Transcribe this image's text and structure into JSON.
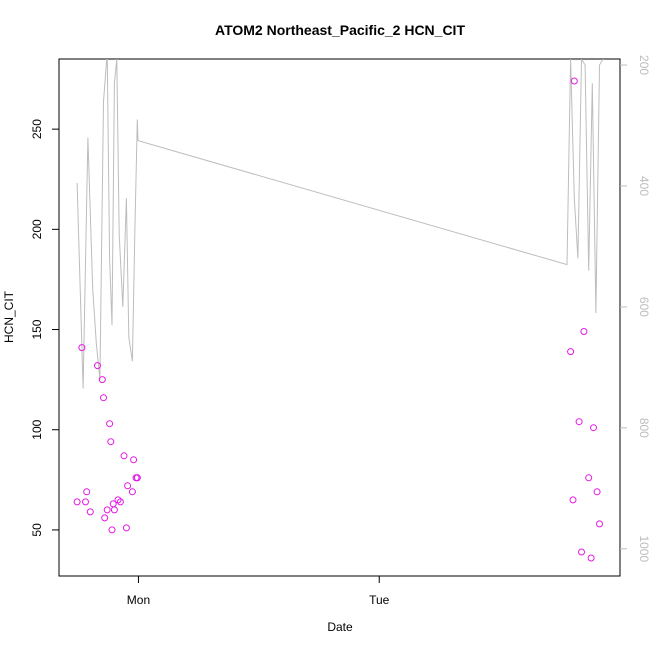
{
  "chart_data": {
    "type": "scatter",
    "title": "ATOM2 Northeast_Pacific_2 HCN_CIT",
    "xlabel": "Date",
    "ylabel": "HCN_CIT",
    "x_ticks": [
      "Mon",
      "Tue"
    ],
    "y_ticks": [
      50,
      100,
      150,
      200,
      250
    ],
    "y_right_ticks": [
      200,
      400,
      600,
      800,
      1000
    ],
    "xlim_hours": [
      -3.3,
      20.0
    ],
    "ylim": [
      27,
      285
    ],
    "y_right_lim": [
      1045,
      190
    ],
    "grid": false,
    "legend": "none",
    "colors": {
      "points": "#e41ae4",
      "line": "#bdbdbd",
      "axis": "#000000",
      "right_axis": "#bdbdbd"
    },
    "series": [
      {
        "axis": "left",
        "style": "points",
        "x_hours": [
          -2.55,
          -2.35,
          -2.2,
          -2.15,
          -2.0,
          -1.7,
          -1.5,
          -1.45,
          -1.4,
          -1.3,
          -1.2,
          -1.15,
          -1.1,
          -1.05,
          -1.0,
          -0.85,
          -0.75,
          -0.6,
          -0.5,
          -0.45,
          -0.25,
          -0.2,
          -0.1,
          -0.05,
          -0.05,
          17.95,
          18.05,
          18.1,
          18.3,
          18.4,
          18.5,
          18.7,
          18.8,
          18.9,
          19.05,
          19.15
        ],
        "y": [
          64,
          141,
          64,
          69,
          59,
          132,
          125,
          116,
          56,
          60,
          103,
          94,
          50,
          63,
          60,
          65,
          64,
          87,
          51,
          72,
          69,
          85,
          76,
          76,
          76,
          139,
          65,
          274,
          104,
          39,
          149,
          76,
          36,
          101,
          69,
          53
        ]
      },
      {
        "axis": "right",
        "style": "line",
        "x_hours": [
          -2.55,
          -2.3,
          -2.1,
          -1.9,
          -1.75,
          -1.6,
          -1.45,
          -1.3,
          -1.2,
          -1.1,
          -1.0,
          -0.9,
          -0.8,
          -0.65,
          -0.5,
          -0.4,
          -0.25,
          -0.15,
          -0.05,
          -0.02,
          17.8,
          17.95,
          18.1,
          18.25,
          18.4,
          18.55,
          18.7,
          18.85,
          19.0,
          19.15,
          19.3
        ],
        "y": [
          395,
          735,
          320,
          570,
          660,
          720,
          260,
          180,
          520,
          630,
          230,
          190,
          480,
          600,
          420,
          650,
          690,
          480,
          290,
          325,
          530,
          190,
          420,
          520,
          190,
          200,
          540,
          230,
          610,
          200,
          190
        ]
      }
    ]
  }
}
